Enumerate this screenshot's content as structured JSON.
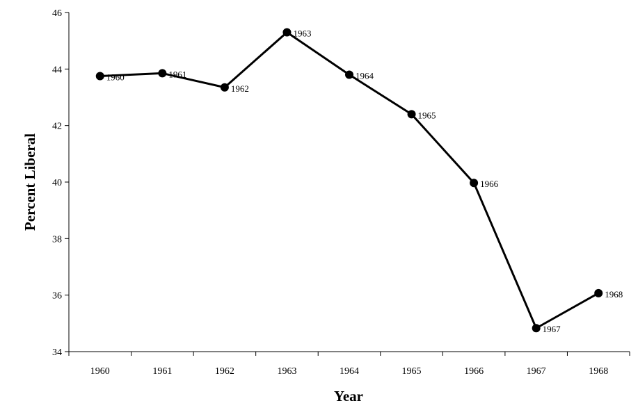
{
  "chart_data": {
    "type": "line",
    "title": "",
    "xlabel": "Year",
    "ylabel": "Percent Liberal",
    "categories": [
      "1960",
      "1961",
      "1962",
      "1963",
      "1964",
      "1965",
      "1966",
      "1967",
      "1968"
    ],
    "series": [
      {
        "values": [
          43.75,
          43.85,
          43.35,
          45.3,
          43.8,
          42.4,
          39.97,
          34.83,
          36.07
        ]
      }
    ],
    "point_labels": [
      "1960",
      "1961",
      "1962",
      "1963",
      "1964",
      "1965",
      "1966",
      "1967",
      "1968"
    ],
    "ylim": [
      34,
      46
    ],
    "yticks": [
      "34",
      "36",
      "38",
      "40",
      "42",
      "44",
      "46"
    ],
    "grid": false,
    "legend": "none",
    "line_color": "#000000",
    "marker_color": "#000000"
  }
}
